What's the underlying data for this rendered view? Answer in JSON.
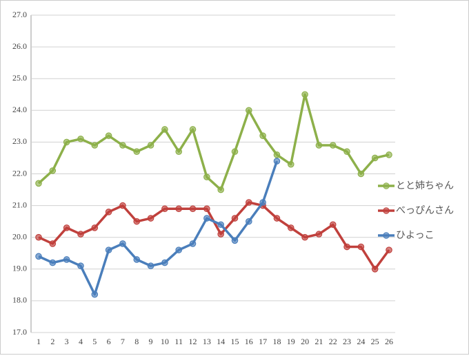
{
  "chart_data": {
    "type": "line",
    "categories": [
      "1",
      "2",
      "3",
      "4",
      "5",
      "6",
      "7",
      "8",
      "9",
      "10",
      "11",
      "12",
      "13",
      "14",
      "15",
      "16",
      "17",
      "18",
      "19",
      "20",
      "21",
      "22",
      "23",
      "24",
      "25",
      "26"
    ],
    "series": [
      {
        "name": "とと姉ちゃん",
        "color": "#8db04a",
        "values": [
          21.7,
          22.1,
          23.0,
          23.1,
          22.9,
          23.2,
          22.9,
          22.7,
          22.9,
          23.4,
          22.7,
          23.4,
          21.9,
          21.5,
          22.7,
          24.0,
          23.2,
          22.6,
          22.3,
          24.5,
          22.9,
          22.9,
          22.7,
          22.0,
          22.5,
          22.6
        ]
      },
      {
        "name": "べっぴんさん",
        "color": "#c0403c",
        "values": [
          20.0,
          19.8,
          20.3,
          20.1,
          20.3,
          20.8,
          21.0,
          20.5,
          20.6,
          20.9,
          20.9,
          20.9,
          20.9,
          20.1,
          20.6,
          21.1,
          21.0,
          20.6,
          20.3,
          20.0,
          20.1,
          20.4,
          19.7,
          19.7,
          19.0,
          19.6
        ]
      },
      {
        "name": "ひよっこ",
        "color": "#4a7ebb",
        "values": [
          19.4,
          19.2,
          19.3,
          19.1,
          18.2,
          19.6,
          19.8,
          19.3,
          19.1,
          19.2,
          19.6,
          19.8,
          20.6,
          20.4,
          19.9,
          20.5,
          21.1,
          22.4,
          null,
          null,
          null,
          null,
          null,
          null,
          null,
          null
        ]
      }
    ],
    "ylim": [
      17,
      27
    ],
    "yticks": [
      {
        "value": 17,
        "label": "17.0"
      },
      {
        "value": 18,
        "label": "18.0"
      },
      {
        "value": 19,
        "label": "19.0"
      },
      {
        "value": 20,
        "label": "20.0"
      },
      {
        "value": 21,
        "label": "21.0"
      },
      {
        "value": 22,
        "label": "22.0"
      },
      {
        "value": 23,
        "label": "23.0"
      },
      {
        "value": 24,
        "label": "24.0"
      },
      {
        "value": 25,
        "label": "25.0"
      },
      {
        "value": 26,
        "label": "26.0"
      },
      {
        "value": 27,
        "label": "27.0"
      }
    ],
    "grid": true,
    "legend": "right"
  }
}
